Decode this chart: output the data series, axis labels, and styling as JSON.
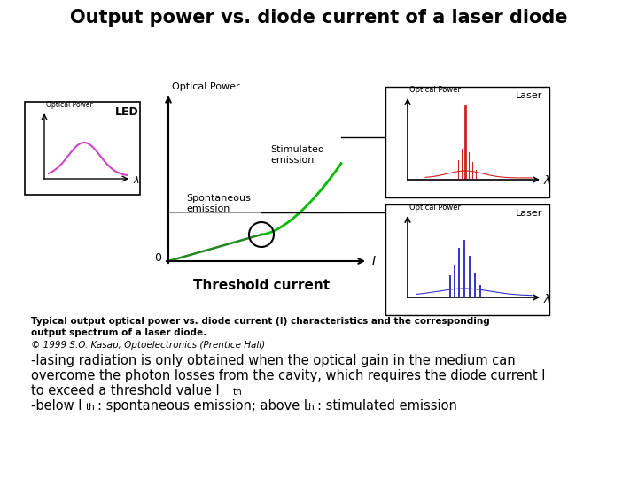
{
  "title": "Output power vs. diode current of a laser diode",
  "title_fontsize": 15,
  "title_fontweight": "bold",
  "bg_color": "#ffffff",
  "caption_line1": "Typical output optical power vs. diode current (I) characteristics and the corresponding",
  "caption_line2": "output spectrum of a laser diode.",
  "caption_line3": "© 1999 S.O. Kasap, Optoelectronics (Prentice Hall)",
  "body_line1": "-lasing radiation is only obtained when the optical gain in the medium can",
  "body_line2": "overcome the photon losses from the cavity, which requires the diode current I",
  "body_line3": "to exceed a threshold value Iₜₕ",
  "body_line4": "-below Iₜₕ: spontaneous emission; above Iₜₕ: stimulated emission",
  "threshold_label": "Threshold current",
  "led_label": "LED",
  "optical_power_label": "Optical Power",
  "stimulated_label": "Stimulated\nemission",
  "spontaneous_label": "Spontaneous\nemission",
  "laser_label": "Laser",
  "lambda_label": "λ",
  "current_label": "I",
  "zero_label": "0"
}
